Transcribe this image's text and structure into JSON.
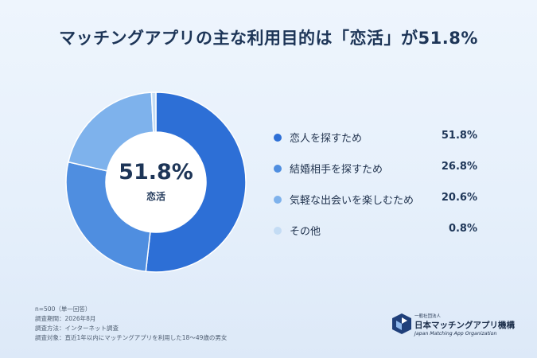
{
  "title": "マッチングアプリの主な利用目的は「恋活」が51.8%",
  "center": {
    "value": "51.8%",
    "label": "恋活"
  },
  "chart_data": {
    "type": "pie",
    "title": "マッチングアプリの主な利用目的は「恋活」が51.8%",
    "categories": [
      "恋人を探すため",
      "結婚相手を探すため",
      "気軽な出会いを楽しむため",
      "その他"
    ],
    "values": [
      51.8,
      26.8,
      20.6,
      0.8
    ],
    "value_labels": [
      "51.8%",
      "26.8%",
      "20.6%",
      "0.8%"
    ],
    "colors": [
      "#2d6fd6",
      "#4f8ee0",
      "#7eb2ec",
      "#c4dcf4"
    ],
    "legend": "right"
  },
  "notes": [
    "n=500（単一回答）",
    "調査期間：2026年8月",
    "調査方法：インターネット調査",
    "調査対象：直近1年以内にマッチングアプリを利用した18〜49歳の男女"
  ],
  "org": {
    "small": "一般社団法人",
    "name": "日本マッチングアプリ機構",
    "english": "Japan Matching App Organization",
    "logo_icon": "org-logo-icon"
  }
}
